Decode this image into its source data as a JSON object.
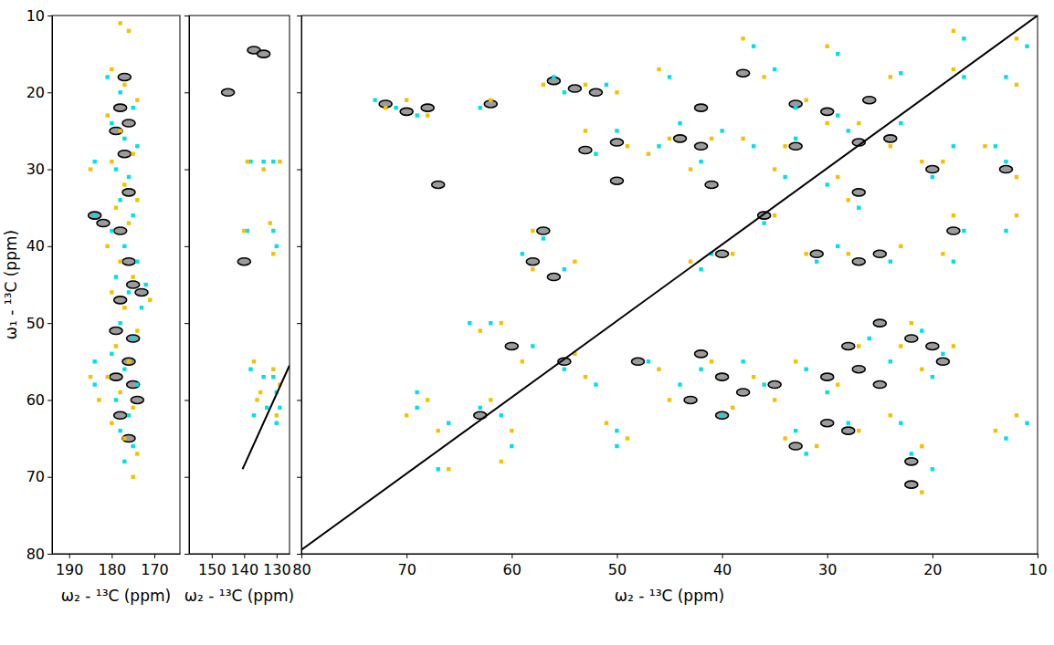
{
  "chart_data": [
    {
      "type": "scatter",
      "xlabel": "ω₂ - ¹³C (ppm)",
      "ylabel": "ω₁ - ¹³C (ppm)",
      "xlim": [
        194,
        164
      ],
      "ylim": [
        80,
        10
      ],
      "xticks": [
        190,
        180,
        170
      ],
      "yticks": [
        10,
        20,
        30,
        40,
        50,
        60,
        70,
        80
      ],
      "tick_labels": true,
      "series": [
        {
          "color": "#000000",
          "marker": "ellipse",
          "x": [
            184,
            182,
            175,
            173,
            177,
            178,
            176,
            179,
            177,
            176,
            178,
            176,
            179,
            176,
            175,
            178,
            176,
            174,
            179,
            175,
            178
          ],
          "values": [
            36,
            37,
            45,
            46,
            18,
            22,
            24,
            25,
            28,
            33,
            38,
            42,
            51,
            55,
            58,
            62,
            65,
            60,
            57,
            52,
            47
          ]
        },
        {
          "color": "#00e0e8",
          "marker": "square",
          "x": [
            181,
            178,
            175,
            180,
            177,
            174,
            179,
            176,
            178,
            175,
            180,
            177,
            174,
            179,
            176,
            178,
            175,
            180,
            177,
            174,
            179,
            176,
            178,
            175,
            177,
            184,
            184,
            184,
            184,
            172,
            173
          ],
          "values": [
            18,
            20,
            22,
            24,
            26,
            27,
            30,
            31,
            34,
            36,
            38,
            40,
            42,
            44,
            46,
            50,
            52,
            54,
            56,
            58,
            60,
            62,
            64,
            66,
            68,
            29,
            55,
            58,
            36,
            45,
            48
          ]
        },
        {
          "color": "#f2c200",
          "marker": "square",
          "x": [
            180,
            177,
            174,
            181,
            178,
            175,
            180,
            177,
            174,
            179,
            176,
            181,
            178,
            175,
            180,
            177,
            174,
            179,
            176,
            181,
            178,
            175,
            180,
            177,
            174,
            178,
            176,
            175,
            185,
            185,
            183,
            171
          ],
          "values": [
            17,
            19,
            21,
            23,
            25,
            28,
            29,
            32,
            34,
            35,
            37,
            40,
            42,
            44,
            46,
            48,
            51,
            53,
            55,
            57,
            59,
            61,
            63,
            65,
            67,
            11,
            12,
            70,
            30,
            57,
            60,
            47
          ]
        }
      ]
    },
    {
      "type": "scatter",
      "xlabel": "ω₂ - ¹³C (ppm)",
      "xlim": [
        157,
        126
      ],
      "ylim": [
        80,
        10
      ],
      "xticks": [
        150,
        140,
        130
      ],
      "yticks": [
        10,
        20,
        30,
        40,
        50,
        60,
        70,
        80
      ],
      "tick_labels": "x",
      "series": [
        {
          "color": "#000000",
          "marker": "ellipse",
          "x": [
            137,
            134,
            145,
            140
          ],
          "values": [
            14.5,
            15,
            20,
            42
          ]
        },
        {
          "color": "#00e0e8",
          "marker": "square",
          "x": [
            138,
            134,
            131,
            139,
            131,
            130,
            138,
            134,
            131,
            130,
            129,
            133,
            137,
            130
          ],
          "values": [
            29,
            29,
            29,
            38,
            38,
            40,
            56,
            57,
            57,
            59,
            61,
            61,
            62,
            63
          ]
        },
        {
          "color": "#f2c200",
          "marker": "square",
          "x": [
            139,
            134,
            129,
            140,
            132,
            131,
            137,
            135,
            131,
            129,
            130,
            136
          ],
          "values": [
            29,
            30,
            29,
            38,
            37,
            41,
            55,
            59,
            56,
            58,
            62,
            60
          ]
        },
        {
          "type": "line",
          "color": "#000000",
          "x": [
            140.5,
            126
          ],
          "values": [
            69,
            55.5
          ]
        }
      ]
    },
    {
      "type": "scatter",
      "xlabel": "ω₂ - ¹³C (ppm)",
      "xlim": [
        80,
        10
      ],
      "ylim": [
        80,
        10
      ],
      "xticks": [
        80,
        70,
        60,
        50,
        40,
        30,
        20,
        10
      ],
      "yticks": [
        10,
        20,
        30,
        40,
        50,
        60,
        70,
        80
      ],
      "tick_labels": "x",
      "series": [
        {
          "color": "#000000",
          "marker": "ellipse",
          "x": [
            72,
            70,
            68,
            62,
            56,
            54,
            52,
            42,
            33,
            30,
            26,
            24,
            27,
            33,
            42,
            44,
            50,
            53,
            67,
            50,
            41,
            27,
            20,
            13,
            36,
            18,
            57,
            58,
            56,
            40,
            31,
            27,
            25,
            63,
            55,
            48,
            42,
            40,
            35,
            30,
            28,
            25,
            22,
            20,
            19,
            27,
            25,
            43,
            38,
            40,
            30,
            33,
            28,
            22,
            22,
            60,
            38
          ],
          "values": [
            21.5,
            22.5,
            22,
            21.5,
            18.5,
            19.5,
            20,
            22,
            21.5,
            22.5,
            21,
            26,
            26.5,
            27,
            27,
            26,
            26.5,
            27.5,
            32,
            31.5,
            32,
            33,
            30,
            30,
            36,
            38,
            38,
            42,
            44,
            41,
            41,
            42,
            41,
            62,
            55,
            55,
            54,
            57,
            58,
            57,
            53,
            50,
            52,
            53,
            55,
            56,
            58,
            60,
            59,
            62,
            63,
            66,
            64,
            68,
            71,
            53,
            17.5
          ]
        },
        {
          "color": "#00e0e8",
          "marker": "square",
          "x": [
            73,
            71,
            69,
            63,
            56,
            55,
            51,
            33,
            29,
            40,
            44,
            50,
            52,
            42,
            46,
            37,
            33,
            28,
            23,
            14,
            18,
            20,
            13,
            34,
            30,
            27,
            17,
            13,
            36,
            57,
            59,
            55,
            41,
            42,
            31,
            29,
            24,
            18,
            62,
            64,
            69,
            69,
            63,
            60,
            50,
            50,
            67,
            58,
            55,
            47,
            44,
            42,
            38,
            36,
            32,
            30,
            26,
            24,
            21,
            19,
            20,
            40,
            33,
            32,
            28,
            23,
            22,
            20,
            11,
            13,
            17,
            13,
            23,
            35,
            37,
            29,
            11,
            17,
            45,
            66,
            61,
            52
          ],
          "values": [
            21,
            22,
            23,
            22,
            18,
            20,
            19,
            22,
            23,
            25,
            24,
            25,
            28,
            29,
            27,
            27,
            26,
            25,
            24,
            27,
            27,
            31,
            29,
            31,
            32,
            35,
            38,
            38,
            37,
            39,
            41,
            43,
            41,
            43,
            42,
            40,
            42,
            42,
            50,
            50,
            59,
            61,
            61,
            66,
            64,
            66,
            69,
            53,
            56,
            55,
            58,
            56,
            55,
            58,
            56,
            59,
            52,
            55,
            51,
            54,
            57,
            62,
            64,
            67,
            63,
            63,
            67,
            69,
            63,
            65,
            18,
            18,
            17.5,
            17,
            14,
            15,
            14,
            13,
            18,
            63,
            62,
            58
          ]
        },
        {
          "color": "#f2c200",
          "marker": "square",
          "x": [
            72,
            70,
            68,
            62,
            57,
            53,
            50,
            32,
            30,
            41,
            45,
            49,
            53,
            43,
            47,
            38,
            34,
            27,
            24,
            15,
            19,
            21,
            12,
            35,
            29,
            28,
            18,
            12,
            35,
            58,
            58,
            54,
            39,
            43,
            32,
            28,
            23,
            19,
            63,
            61,
            68,
            70,
            62,
            61,
            51,
            49,
            66,
            59,
            54,
            46,
            45,
            41,
            37,
            35,
            33,
            29,
            27,
            23,
            22,
            18,
            21,
            39,
            34,
            31,
            27,
            24,
            21,
            21,
            12,
            14,
            18,
            12,
            24,
            36,
            38,
            30,
            12,
            18,
            46,
            67,
            60,
            53
          ],
          "values": [
            22,
            21,
            23,
            21,
            19,
            19,
            20,
            21,
            24,
            26,
            26,
            27,
            25,
            30,
            28,
            26,
            27,
            24,
            27,
            27,
            29,
            29,
            31,
            30,
            31,
            34,
            36,
            36,
            36,
            38,
            43,
            42,
            41,
            42,
            41,
            41,
            40,
            41,
            51,
            50,
            60,
            62,
            60,
            68,
            63,
            65,
            69,
            55,
            54,
            56,
            60,
            55,
            57,
            60,
            55,
            58,
            53,
            53,
            50,
            53,
            56,
            61,
            65,
            66,
            64,
            62,
            66,
            72,
            62,
            64,
            17,
            19,
            18,
            18,
            13,
            14,
            13,
            12,
            17,
            64,
            64,
            57
          ]
        },
        {
          "type": "line",
          "color": "#000000",
          "x": [
            80,
            10
          ],
          "values": [
            79.5,
            10
          ]
        }
      ]
    }
  ]
}
